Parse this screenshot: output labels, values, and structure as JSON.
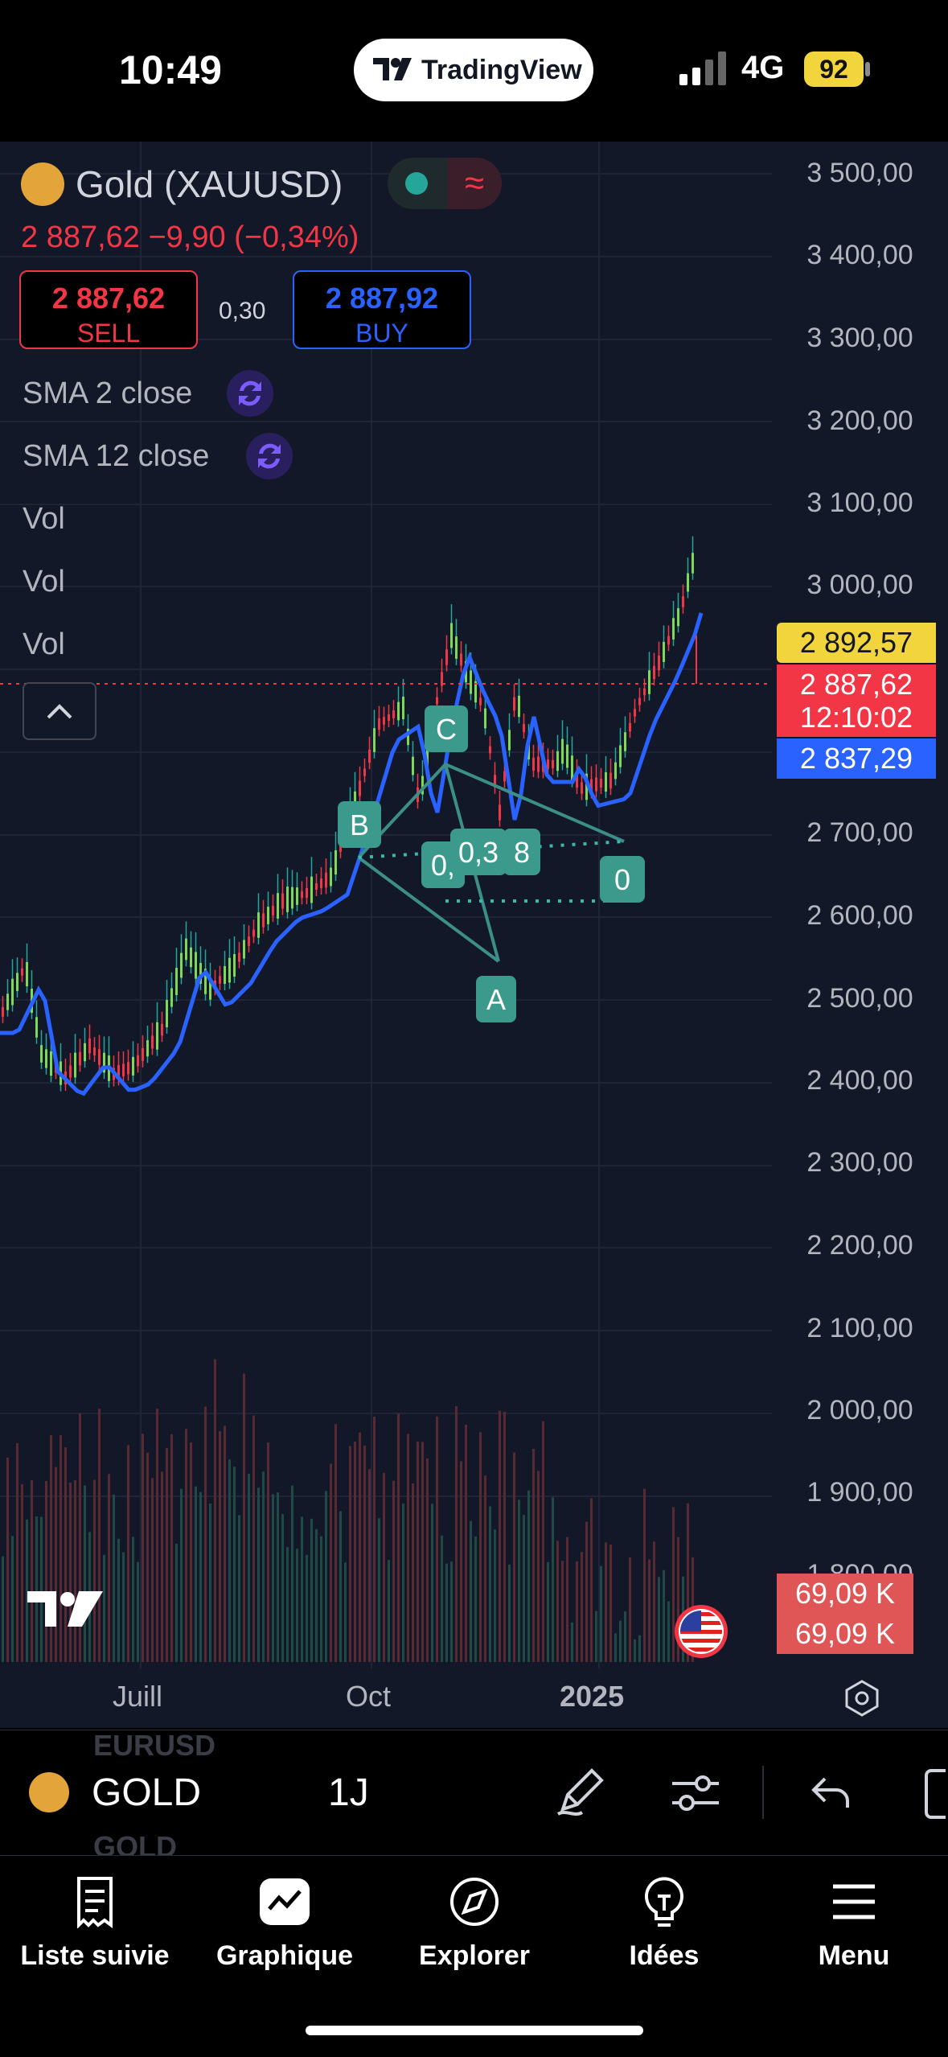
{
  "status_bar": {
    "time": "10:49",
    "app_pill": "TradingView",
    "network": "4G",
    "battery": "92"
  },
  "legend": {
    "symbol": "Gold (XAUUSD)",
    "change": "2 887,62  −9,90 (−0,34%)",
    "sell_price": "2 887,62",
    "sell_label": "SELL",
    "buy_price": "2 887,92",
    "buy_label": "BUY",
    "spread": "0,30",
    "indicators": [
      "SMA 2 close",
      "SMA 12 close",
      "Vol",
      "Vol",
      "Vol"
    ]
  },
  "price_scale": [
    "3 500,00",
    "3 400,00",
    "3 300,00",
    "3 200,00",
    "3 100,00",
    "3 000,00",
    "2 700,00",
    "2 600,00",
    "2 500,00",
    "2 400,00",
    "2 300,00",
    "2 200,00",
    "2 100,00",
    "2 000,00",
    "1 900,00",
    "1 800,00"
  ],
  "badges": {
    "high": "2 892,57",
    "last": "2 887,62",
    "countdown": "12:10:02",
    "sma": "2 837,29",
    "vol1": "69,09 K",
    "vol2": "69,09 K"
  },
  "pattern_labels": {
    "a": "A",
    "b": "B",
    "c": "C",
    "d1": "0,",
    "d2": "0,3",
    "d3": "8",
    "d4": "0"
  },
  "x_axis": [
    "Juill",
    "Oct",
    "2025"
  ],
  "toolbar": {
    "symbol": "GOLD",
    "interval": "1J",
    "ghost_above": "EURUSD",
    "ghost_below": "GOLD"
  },
  "tabs": [
    {
      "label": "Liste suivie",
      "icon": "watchlist-icon"
    },
    {
      "label": "Graphique",
      "icon": "chart-icon"
    },
    {
      "label": "Explorer",
      "icon": "compass-icon"
    },
    {
      "label": "Idées",
      "icon": "lightbulb-icon"
    },
    {
      "label": "Menu",
      "icon": "hamburger-icon"
    }
  ],
  "colors": {
    "up": "#26a69a",
    "down": "#f23645",
    "sma": "#2962ff",
    "accent": "#f2d43d"
  }
}
